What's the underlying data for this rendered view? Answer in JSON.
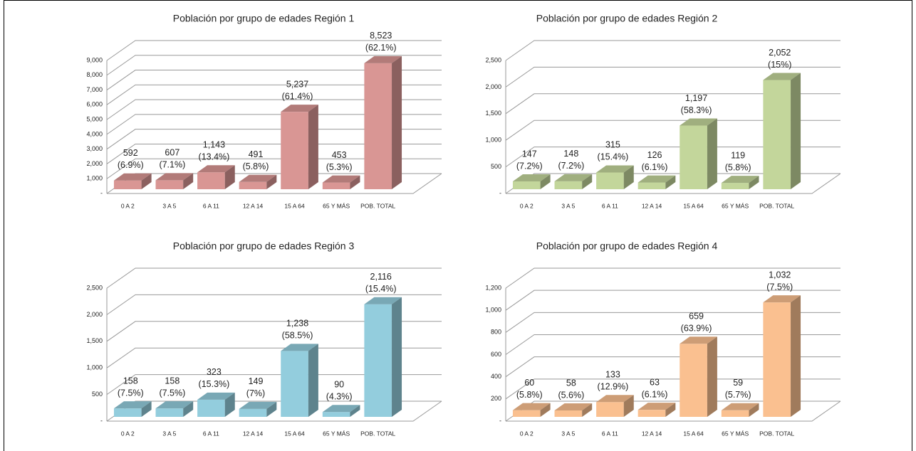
{
  "chart_data": [
    {
      "type": "bar3d",
      "title": "Población por grupo de edades Región 1",
      "categories": [
        "0 A 2",
        "3 A 5",
        "6 A 11",
        "12 A 14",
        "15 A 64",
        "65 Y MÁS",
        "POB. TOTAL"
      ],
      "values": [
        592,
        607,
        1143,
        491,
        5237,
        453,
        8523
      ],
      "value_labels": [
        "592",
        "607",
        "1,143",
        "491",
        "5,237",
        "453",
        "8,523"
      ],
      "percent_labels": [
        "(6.9%)",
        "(7.1%)",
        "(13.4%)",
        "(5.8%)",
        "(61.4%)",
        "(5.3%)",
        "(62.1%)"
      ],
      "color": "#d99694",
      "ylim": [
        0,
        9000
      ],
      "yticks": [
        {
          "value": 0,
          "label": "-"
        },
        {
          "value": 1000,
          "label": "1,000"
        },
        {
          "value": 2000,
          "label": "2,000"
        },
        {
          "value": 3000,
          "label": "3,000"
        },
        {
          "value": 4000,
          "label": "4,000"
        },
        {
          "value": 5000,
          "label": "5,000"
        },
        {
          "value": 6000,
          "label": "6,000"
        },
        {
          "value": 7000,
          "label": "7,000"
        },
        {
          "value": 8000,
          "label": "8,000"
        },
        {
          "value": 9000,
          "label": "9,000"
        }
      ],
      "grid": true
    },
    {
      "type": "bar3d",
      "title": "Población por grupo de edades Región 2",
      "categories": [
        "0 A 2",
        "3 A 5",
        "6 A 11",
        "12 A 14",
        "15 A 64",
        "65 Y MÁS",
        "POB. TOTAL"
      ],
      "values": [
        147,
        148,
        315,
        126,
        1197,
        119,
        2052
      ],
      "value_labels": [
        "147",
        "148",
        "315",
        "126",
        "1,197",
        "119",
        "2,052"
      ],
      "percent_labels": [
        "(7.2%)",
        "(7.2%)",
        "(15.4%)",
        "(6.1%)",
        "(58.3%)",
        "(5.8%)",
        "(15%)"
      ],
      "color": "#c3d69b",
      "ylim": [
        0,
        2500
      ],
      "yticks": [
        {
          "value": 0,
          "label": "-"
        },
        500,
        {
          "value": 1000,
          "label": "1,000"
        },
        {
          "value": 1500,
          "label": "1,500"
        },
        {
          "value": 2000,
          "label": "2,000"
        },
        {
          "value": 2500,
          "label": "2,500"
        }
      ],
      "grid": true
    },
    {
      "type": "bar3d",
      "title": "Población por grupo de edades Región 3",
      "categories": [
        "0 A 2",
        "3 A 5",
        "6 A 11",
        "12 A 14",
        "15 A 64",
        "65 Y MÁS",
        "POB. TOTAL"
      ],
      "values": [
        158,
        158,
        323,
        149,
        1238,
        90,
        2116
      ],
      "value_labels": [
        "158",
        "158",
        "323",
        "149",
        "1,238",
        "90",
        "2,116"
      ],
      "percent_labels": [
        "(7.5%)",
        "(7.5%)",
        "(15.3%)",
        "(7%)",
        "(58.5%)",
        "(4.3%)",
        "(15.4%)"
      ],
      "color": "#93cddd",
      "ylim": [
        0,
        2500
      ],
      "yticks": [
        {
          "value": 0,
          "label": "-"
        },
        500,
        {
          "value": 1000,
          "label": "1,000"
        },
        {
          "value": 1500,
          "label": "1,500"
        },
        {
          "value": 2000,
          "label": "2,000"
        },
        {
          "value": 2500,
          "label": "2,500"
        }
      ],
      "grid": true
    },
    {
      "type": "bar3d",
      "title": "Población por grupo de edades Región 4",
      "categories": [
        "0 A 2",
        "3 A 5",
        "6 A 11",
        "12 A 14",
        "15 A 64",
        "65 Y MÁS",
        "POB. TOTAL"
      ],
      "values": [
        60,
        58,
        133,
        63,
        659,
        59,
        1032
      ],
      "value_labels": [
        "60",
        "58",
        "133",
        "63",
        "659",
        "59",
        "1,032"
      ],
      "percent_labels": [
        "(5.8%)",
        "(5.6%)",
        "(12.9%)",
        "(6.1%)",
        "(63.9%)",
        "(5.7%)",
        "(7.5%)"
      ],
      "color": "#fac090",
      "ylim": [
        0,
        1200
      ],
      "yticks": [
        {
          "value": 0,
          "label": "-"
        },
        200,
        400,
        600,
        800,
        {
          "value": 1000,
          "label": "1,000"
        },
        {
          "value": 1200,
          "label": "1,200"
        }
      ],
      "grid": true
    }
  ]
}
